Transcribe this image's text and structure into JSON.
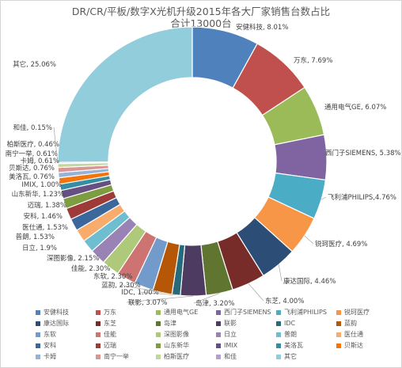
{
  "chart_data": {
    "type": "pie",
    "variant": "doughnut",
    "title": "DR/CR/平板/数字X光机升级2015年各大厂家销售台数占比",
    "subtitle": "合计13000台",
    "legend_position": "bottom",
    "slices": [
      {
        "name": "安健科技",
        "value": 8.01,
        "label": "安健科技, 8.01%",
        "color": "#4f81bd"
      },
      {
        "name": "万东",
        "value": 7.69,
        "label": "万东, 7.69%",
        "color": "#c0504d"
      },
      {
        "name": "通用电气GE",
        "value": 6.07,
        "label": "通用电气GE, 6.07%",
        "color": "#9bbb59"
      },
      {
        "name": "西门子SIEMENS",
        "value": 5.38,
        "label": "西门子SIEMENS, 5.38%",
        "color": "#8064a2"
      },
      {
        "name": "飞利浦PHILIPS",
        "value": 4.76,
        "label": "飞利浦PHILIPS,4.76%",
        "color": "#4bacc6"
      },
      {
        "name": "锐珂医疗",
        "value": 4.69,
        "label": "锐珂医疗, 4.69%",
        "color": "#f79646"
      },
      {
        "name": "康达国际",
        "value": 4.46,
        "label": "康达国际, 4.46%",
        "color": "#2c4d75"
      },
      {
        "name": "东芝",
        "value": 4.0,
        "label": "东芝, 4.00%",
        "color": "#772c2a"
      },
      {
        "name": "岛津",
        "value": 3.2,
        "label": "岛津, 3.20%",
        "color": "#5f7530"
      },
      {
        "name": "联影",
        "value": 3.07,
        "label": "联影, 3.07%",
        "color": "#4d3b62"
      },
      {
        "name": "IDC",
        "value": 1.0,
        "label": "IDC, 1.00%",
        "color": "#276a7c"
      },
      {
        "name": "蓝韵",
        "value": 2.3,
        "label": "蓝韵, 2.30%",
        "color": "#b65708"
      },
      {
        "name": "东软",
        "value": 2.3,
        "label": "东软, 2.30%",
        "color": "#729aca"
      },
      {
        "name": "佳能",
        "value": 2.3,
        "label": "佳能, 2.30%",
        "color": "#cd7371"
      },
      {
        "name": "深图影像",
        "value": 2.15,
        "label": "深图影像, 2.15%",
        "color": "#afc97a"
      },
      {
        "name": "日立",
        "value": 1.9,
        "label": "日立, 1.9%",
        "color": "#9983b5"
      },
      {
        "name": "普朗",
        "value": 1.53,
        "label": "普朗, 1.53%",
        "color": "#6fbdd1"
      },
      {
        "name": "医仕通",
        "value": 1.53,
        "label": "医仕通, 1.53%",
        "color": "#f9ab6b"
      },
      {
        "name": "安科",
        "value": 1.46,
        "label": "安科, 1.46%",
        "color": "#3a679c"
      },
      {
        "name": "迈瑞",
        "value": 1.38,
        "label": "迈瑞, 1.38%",
        "color": "#9e3b38"
      },
      {
        "name": "山东新华",
        "value": 1.23,
        "label": "山东新华, 1.23%",
        "color": "#7e9c40"
      },
      {
        "name": "IMIX",
        "value": 1.0,
        "label": "IMIX, 1.00%",
        "color": "#664f83"
      },
      {
        "name": "美洛瓦",
        "value": 0.76,
        "label": "美洛瓦, 0.76%",
        "color": "#358ea6"
      },
      {
        "name": "贝斯达",
        "value": 0.76,
        "label": "贝斯达, 0.76%",
        "color": "#f3740b"
      },
      {
        "name": "卡姆",
        "value": 0.61,
        "label": "卡姆, 0.61%",
        "color": "#95b3d7"
      },
      {
        "name": "南宁一举",
        "value": 0.61,
        "label": "南宁一举, 0.61%",
        "color": "#d99694"
      },
      {
        "name": "柏斯医疗",
        "value": 0.46,
        "label": "柏斯医疗, 0.46%",
        "color": "#c3d69b"
      },
      {
        "name": "和佳",
        "value": 0.15,
        "label": "和佳, 0.15%",
        "color": "#b3a2c7"
      },
      {
        "name": "其它",
        "value": 25.06,
        "label": "其它, 25.06%",
        "color": "#92cddc"
      }
    ]
  }
}
